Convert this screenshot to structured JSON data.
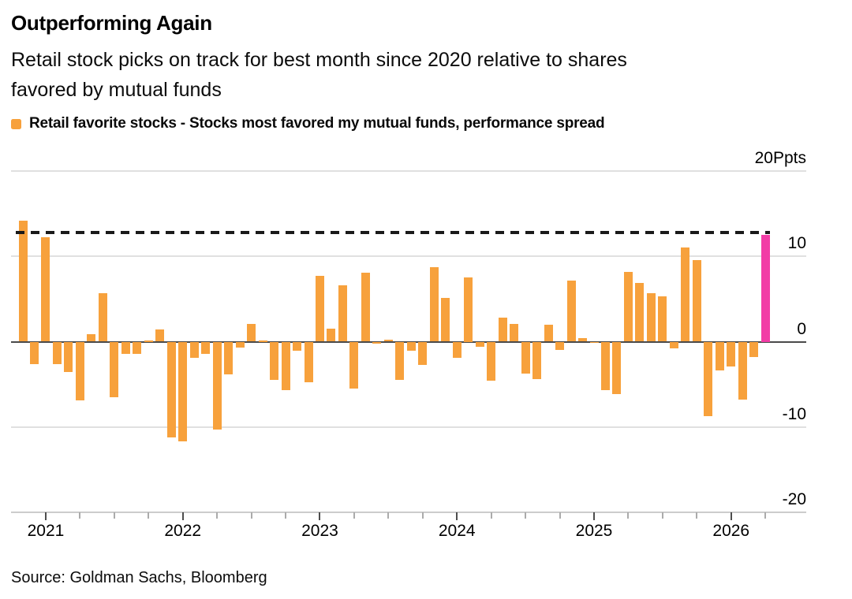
{
  "header": {
    "title": "Outperforming Again",
    "subtitle_line1": "Retail stock picks on track for best month since 2020 relative to shares",
    "subtitle_line2": "favored by mutual funds",
    "legend_label": "Retail favorite stocks - Stocks most favored my mutual funds, performance spread"
  },
  "footer": {
    "source": "Source: Goldman Sachs, Bloomberg"
  },
  "colors": {
    "bar": "#F7A13C",
    "highlight": "#F23CA6",
    "grid": "#E0E0E0",
    "baseline": "#CCCCCC",
    "zero_axis": "#4A4A4A",
    "dashed_line": "#1A1A1A",
    "tick_major": "#4D4D4D",
    "tick_minor": "#ABABAB",
    "text": "#000000"
  },
  "chart_data": {
    "type": "bar",
    "title": "Outperforming Again",
    "subtitle": "Retail stock picks on track for best month since 2020 relative to shares favored by mutual funds",
    "unit": "Ppts",
    "legend": [
      "Retail favorite stocks - Stocks most favored my mutual funds, performance spread"
    ],
    "ylim": [
      -20,
      20
    ],
    "grid": true,
    "legend_position": "top-left",
    "yticks": [
      {
        "value": 20,
        "label": "20Ppts"
      },
      {
        "value": 10,
        "label": "10"
      },
      {
        "value": 0,
        "label": "0"
      },
      {
        "value": -10,
        "label": "-10"
      },
      {
        "value": -20,
        "label": "-20"
      }
    ],
    "xticks_years": [
      "2021",
      "2022",
      "2023",
      "2024",
      "2025",
      "2026"
    ],
    "dashed_reference_value": 12.8,
    "highlight_month": "2026-04",
    "months": [
      "2020-11",
      "2020-12",
      "2021-01",
      "2021-02",
      "2021-03",
      "2021-04",
      "2021-05",
      "2021-06",
      "2021-07",
      "2021-08",
      "2021-09",
      "2021-10",
      "2021-11",
      "2021-12",
      "2022-01",
      "2022-02",
      "2022-03",
      "2022-04",
      "2022-05",
      "2022-06",
      "2022-07",
      "2022-08",
      "2022-09",
      "2022-10",
      "2022-11",
      "2022-12",
      "2023-01",
      "2023-02",
      "2023-03",
      "2023-04",
      "2023-05",
      "2023-06",
      "2023-07",
      "2023-08",
      "2023-09",
      "2023-10",
      "2023-11",
      "2023-12",
      "2024-01",
      "2024-02",
      "2024-03",
      "2024-04",
      "2024-05",
      "2024-06",
      "2024-07",
      "2024-08",
      "2024-09",
      "2024-10",
      "2024-11",
      "2024-12",
      "2025-01",
      "2025-02",
      "2025-03",
      "2025-04",
      "2025-05",
      "2025-06",
      "2025-07",
      "2025-08",
      "2025-09",
      "2025-10",
      "2025-11",
      "2025-12",
      "2026-01",
      "2026-02",
      "2026-03",
      "2026-04"
    ],
    "values": [
      14.2,
      -2.6,
      12.2,
      -2.6,
      -3.6,
      -6.9,
      0.9,
      5.7,
      -6.5,
      -1.4,
      -1.4,
      0.1,
      1.4,
      -11.2,
      -11.7,
      -1.9,
      -1.4,
      -10.3,
      -3.8,
      -0.7,
      2.1,
      0.1,
      -4.5,
      -5.7,
      -1.1,
      -4.8,
      7.7,
      1.5,
      6.6,
      -5.5,
      8.1,
      -0.2,
      0.2,
      -4.5,
      -1.1,
      -2.7,
      8.7,
      5.1,
      -1.9,
      7.5,
      -0.6,
      -4.6,
      2.8,
      2.1,
      -3.7,
      -4.4,
      2.0,
      -1.0,
      7.2,
      0.4,
      -0.1,
      -5.7,
      -6.1,
      8.2,
      6.9,
      5.7,
      5.3,
      -0.8,
      11.0,
      9.6,
      -8.7,
      -3.4,
      -2.9,
      -6.8,
      -1.8,
      12.5
    ]
  }
}
